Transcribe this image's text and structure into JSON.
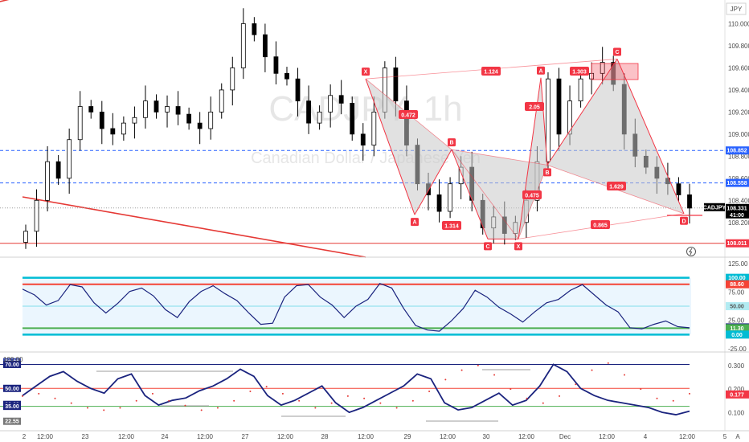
{
  "symbol": "CADJPY",
  "watermark": {
    "ticker": "CADJPY, 1h",
    "name": "Canadian Dollar / Japanese Yen"
  },
  "currency_label": "JPY",
  "colors": {
    "up": "#ffffff",
    "down": "#000000",
    "candle_border": "#000000",
    "pattern": "#f23645",
    "pattern_fill": "#c8c8c8",
    "dashed": "#2962ff",
    "trend": "#e53935",
    "rsi_line": "#1a237e",
    "band_cyan": "#00bcd4",
    "band_red": "#f44336",
    "band_green": "#4caf50",
    "dots": "#e53935"
  },
  "price_tags": [
    {
      "value": "108.852",
      "color": "#2962ff"
    },
    {
      "value": "108.558",
      "color": "#2962ff"
    },
    {
      "value": "108.331",
      "sub": "41:00",
      "color": "#000000"
    },
    {
      "value": "108.011",
      "color": "#f23645"
    }
  ],
  "osc1_tags": [
    {
      "value": "100.00",
      "color": "#00bcd4"
    },
    {
      "value": "88.60",
      "color": "#f44336"
    },
    {
      "value": "50.00",
      "color": "#b2ebf2",
      "dark_text": true
    },
    {
      "value": "12.63",
      "color": "#1a237e"
    },
    {
      "value": "11.30",
      "color": "#4caf50"
    },
    {
      "value": "0.00",
      "color": "#00bcd4"
    }
  ],
  "osc2_left_tags": [
    {
      "value": "72.22",
      "color": "#3949ab"
    },
    {
      "value": "70.00",
      "color": "#1a237e"
    },
    {
      "value": "50.00",
      "color": "#1a237e"
    },
    {
      "value": "36.63",
      "color": "#1a237e"
    },
    {
      "value": "35.00",
      "color": "#1a237e"
    },
    {
      "value": "22.55",
      "color": "#777777"
    }
  ],
  "osc2_right_tag": {
    "value": "0.177",
    "color": "#f23645"
  },
  "pattern_labels": {
    "points": [
      "X",
      "A",
      "B",
      "C",
      "X",
      "A",
      "B",
      "C",
      "D"
    ],
    "ratios": [
      "0.472",
      "1.314",
      "1.124",
      "0.475",
      "2.05",
      "1.303",
      "1.629",
      "0.865"
    ]
  },
  "chart_data": [
    {
      "type": "candlestick",
      "title": "CADJPY, 1h",
      "subtitle": "Canadian Dollar / Japanese Yen",
      "yaxis_side": "right",
      "ylim": [
        107.9,
        110.2
      ],
      "y_ticks": [
        "110.000",
        "109.800",
        "109.600",
        "109.400",
        "109.200",
        "109.000",
        "108.800",
        "108.600",
        "108.400",
        "108.200"
      ],
      "x_ticks": [
        "2",
        "12:00",
        "23",
        "12:00",
        "24",
        "12:00",
        "27",
        "12:00",
        "28",
        "12:00",
        "29",
        "12:00",
        "30",
        "12:00",
        "Dec",
        "12:00",
        "4",
        "12:00",
        "5",
        "A"
      ],
      "close_series": [
        108.12,
        108.4,
        108.75,
        108.6,
        108.95,
        109.25,
        109.2,
        109.05,
        109.0,
        109.1,
        109.15,
        109.3,
        109.2,
        109.25,
        109.18,
        109.1,
        109.05,
        109.2,
        109.4,
        109.6,
        110.0,
        109.9,
        109.7,
        109.55,
        109.5,
        109.3,
        109.1,
        109.2,
        109.35,
        109.28,
        109.0,
        108.9,
        109.2,
        109.6,
        109.3,
        108.9,
        108.55,
        108.45,
        108.3,
        108.55,
        108.7,
        108.4,
        108.15,
        108.25,
        108.1,
        108.2,
        108.4,
        108.75,
        109.5,
        109.0,
        109.3,
        109.5,
        109.55,
        109.65,
        109.45,
        109.0,
        108.8,
        108.7,
        108.6,
        108.55,
        108.45,
        108.33
      ],
      "levels": [
        108.852,
        108.558,
        108.331,
        108.011
      ],
      "pattern_points": [
        {
          "label": "X",
          "value": 109.5
        },
        {
          "label": "A",
          "value": 108.27
        },
        {
          "label": "B",
          "value": 108.86
        },
        {
          "label": "C",
          "value": 108.05
        },
        {
          "label": "X",
          "value": 108.05
        },
        {
          "label": "A",
          "value": 109.51
        },
        {
          "label": "B",
          "value": 108.72
        },
        {
          "label": "C",
          "value": 109.68
        },
        {
          "label": "D",
          "value": 108.28
        }
      ]
    },
    {
      "type": "line",
      "ylim": [
        -25,
        125
      ],
      "y_ticks": [
        "125.00",
        "75.00",
        "25.00",
        "-25.00"
      ],
      "bands": [
        100,
        88.6,
        50,
        11.3,
        0
      ],
      "values": [
        80,
        70,
        52,
        60,
        88,
        84,
        56,
        38,
        55,
        76,
        82,
        68,
        44,
        30,
        58,
        76,
        86,
        72,
        60,
        38,
        18,
        20,
        66,
        86,
        88,
        66,
        52,
        30,
        50,
        62,
        90,
        82,
        46,
        16,
        8,
        6,
        24,
        46,
        78,
        66,
        48,
        36,
        22,
        40,
        56,
        62,
        78,
        88,
        70,
        52,
        40,
        12,
        10,
        18,
        24,
        14,
        12
      ]
    },
    {
      "type": "line",
      "ylim": [
        0.05,
        0.33
      ],
      "y_ticks": [
        "0.300",
        "0.200",
        "0.100"
      ],
      "bands": [
        70,
        50,
        35
      ],
      "line_values": [
        44,
        52,
        60,
        64,
        56,
        50,
        46,
        58,
        62,
        44,
        36,
        40,
        42,
        48,
        52,
        58,
        66,
        60,
        44,
        36,
        40,
        46,
        52,
        38,
        30,
        34,
        40,
        46,
        52,
        62,
        58,
        38,
        32,
        34,
        40,
        46,
        36,
        40,
        52,
        70,
        64,
        50,
        44,
        40,
        38,
        36,
        34,
        30,
        28,
        31
      ],
      "dots_values": [
        0.17,
        0.18,
        0.16,
        0.14,
        0.12,
        0.11,
        0.12,
        0.15,
        0.18,
        0.15,
        0.13,
        0.11,
        0.12,
        0.15,
        0.19,
        0.21,
        0.18,
        0.15,
        0.12,
        0.14,
        0.17,
        0.16,
        0.14,
        0.12,
        0.15,
        0.19,
        0.24,
        0.28,
        0.3,
        0.26,
        0.2,
        0.16,
        0.14,
        0.17,
        0.22,
        0.28,
        0.31,
        0.26,
        0.2,
        0.16,
        0.15,
        0.18
      ]
    }
  ]
}
